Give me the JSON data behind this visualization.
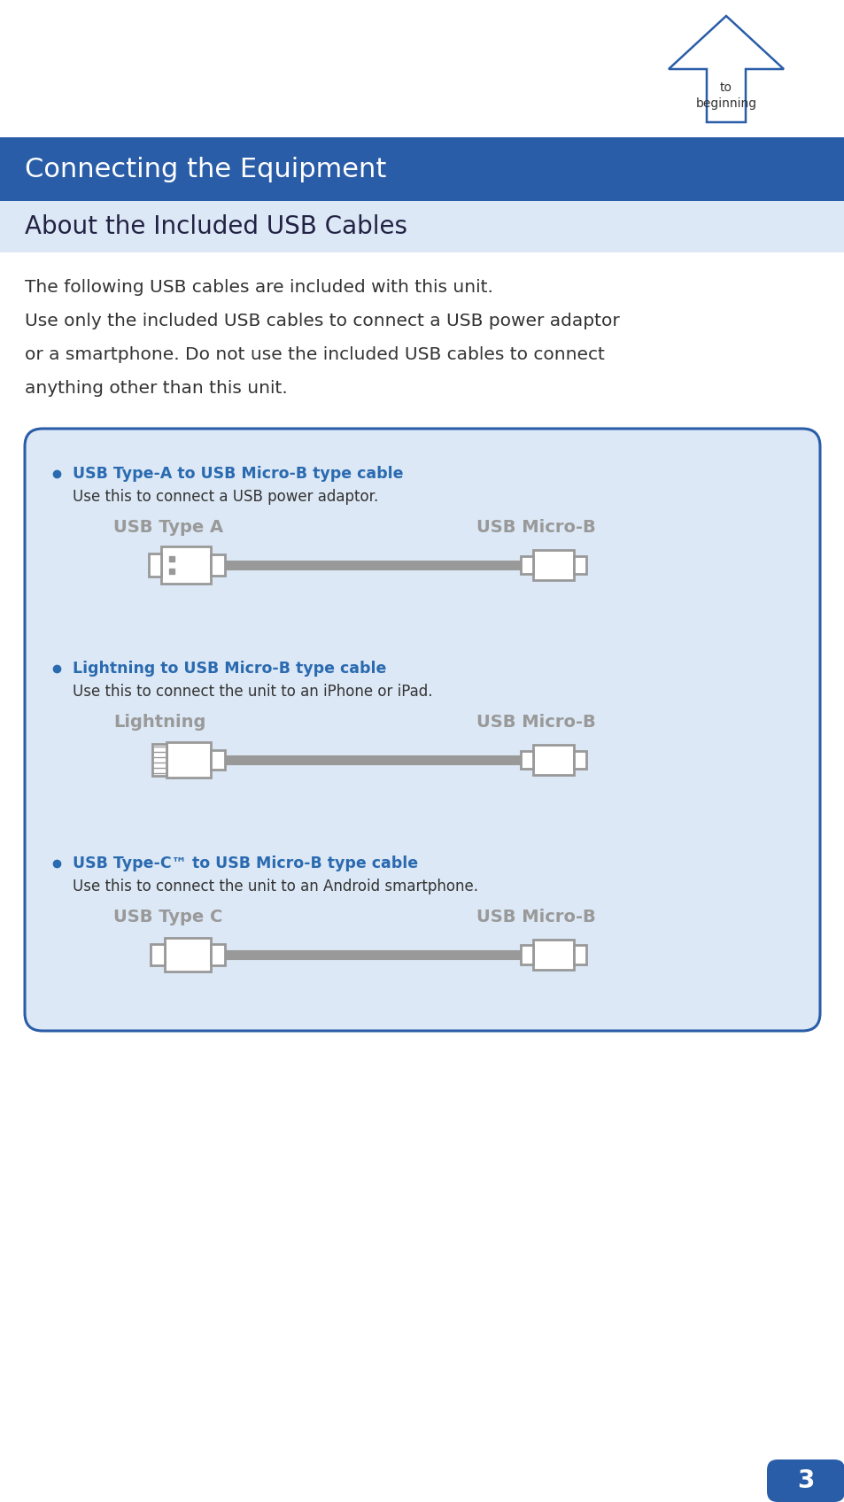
{
  "bg_color": "#ffffff",
  "header_bg_top": "#2a5da8",
  "header_bg_bot": "#1a3f7a",
  "header_text": "Connecting the Equipment",
  "header_text_color": "#ffffff",
  "subheader_bg": "#dce8f5",
  "subheader_text": "About the Included USB Cables",
  "subheader_text_color": "#222244",
  "body_text1": "The following USB cables are included with this unit.",
  "body_text2a": "Use only the included USB cables to connect a USB power adaptor",
  "body_text2b": "or a smartphone. Do not use the included USB cables to connect",
  "body_text2c": "anything other than this unit.",
  "box_bg": "#dce8f5",
  "box_border": "#2a5da8",
  "cable1_title": "USB Type-A to USB Micro-B type cable",
  "cable1_desc": "Use this to connect a USB power adaptor.",
  "cable1_left_label": "USB Type A",
  "cable1_right_label": "USB Micro-B",
  "cable2_title": "Lightning to USB Micro-B type cable",
  "cable2_desc": "Use this to connect the unit to an iPhone or iPad.",
  "cable2_left_label": "Lightning",
  "cable2_right_label": "USB Micro-B",
  "cable3_title": "USB Type-C™ to USB Micro-B type cable",
  "cable3_desc": "Use this to connect the unit to an Android smartphone.",
  "cable3_left_label": "USB Type C",
  "cable3_right_label": "USB Micro-B",
  "cable_title_color": "#2a6ab0",
  "cable_label_color": "#999999",
  "cable_color": "#999999",
  "page_number": "3",
  "page_bg": "#2a5da8",
  "page_text_color": "#ffffff",
  "arrow_color": "#2a5da8",
  "to_text": "to",
  "beginning_text": "beginning",
  "body_text_color": "#333333"
}
